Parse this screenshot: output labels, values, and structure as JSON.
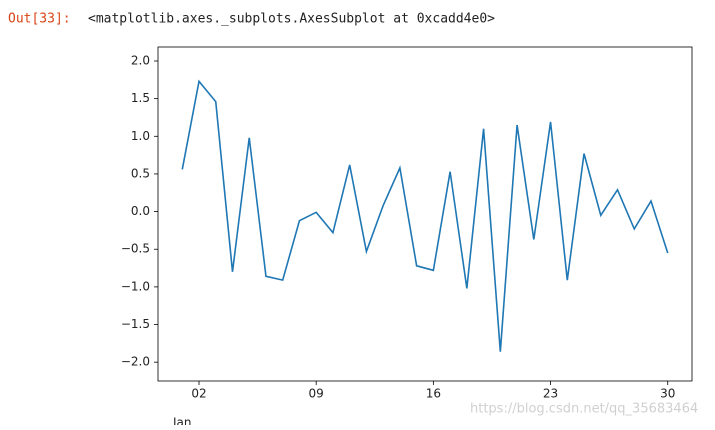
{
  "output_prompt": "Out[33]:",
  "output_text": "<matplotlib.axes._subplots.AxesSubplot at 0xcadd4e0>",
  "watermark": "https://blog.csdn.net/qq_35683464",
  "chart_data": {
    "type": "line",
    "x": [
      1,
      2,
      3,
      4,
      5,
      6,
      7,
      8,
      9,
      10,
      11,
      12,
      13,
      14,
      15,
      16,
      17,
      18,
      19,
      20,
      21,
      22,
      23,
      24,
      25,
      26,
      27,
      28,
      29,
      30
    ],
    "x_month_label": "Jan",
    "series": [
      {
        "color": "#1f77b4",
        "values": [
          0.56,
          1.73,
          1.46,
          -0.8,
          0.98,
          -0.86,
          -0.91,
          -0.12,
          -0.01,
          -0.28,
          0.62,
          -0.53,
          0.08,
          0.58,
          -0.72,
          -0.78,
          0.53,
          -1.02,
          1.1,
          -1.86,
          1.15,
          -0.37,
          1.19,
          -0.91,
          0.77,
          -0.05,
          0.29,
          -0.23,
          0.14,
          -0.55
        ]
      }
    ],
    "xlim": [
      -0.45,
      31.45
    ],
    "xticks": [
      {
        "value": 2,
        "label": "02"
      },
      {
        "value": 9,
        "label": "09"
      },
      16,
      23,
      30
    ],
    "ylim": [
      -2.25,
      2.186
    ],
    "yticks": [
      {
        "value": 2,
        "label": "2.0"
      },
      1.5,
      {
        "value": 1,
        "label": "1.0"
      },
      0.5,
      {
        "value": 0,
        "label": "0.0"
      },
      {
        "value": -0.5,
        "label": "−0.5"
      },
      {
        "value": -1,
        "label": "−1.0"
      },
      {
        "value": -1.5,
        "label": "−1.5"
      },
      {
        "value": -2,
        "label": "−2.0"
      }
    ],
    "grid": false
  }
}
